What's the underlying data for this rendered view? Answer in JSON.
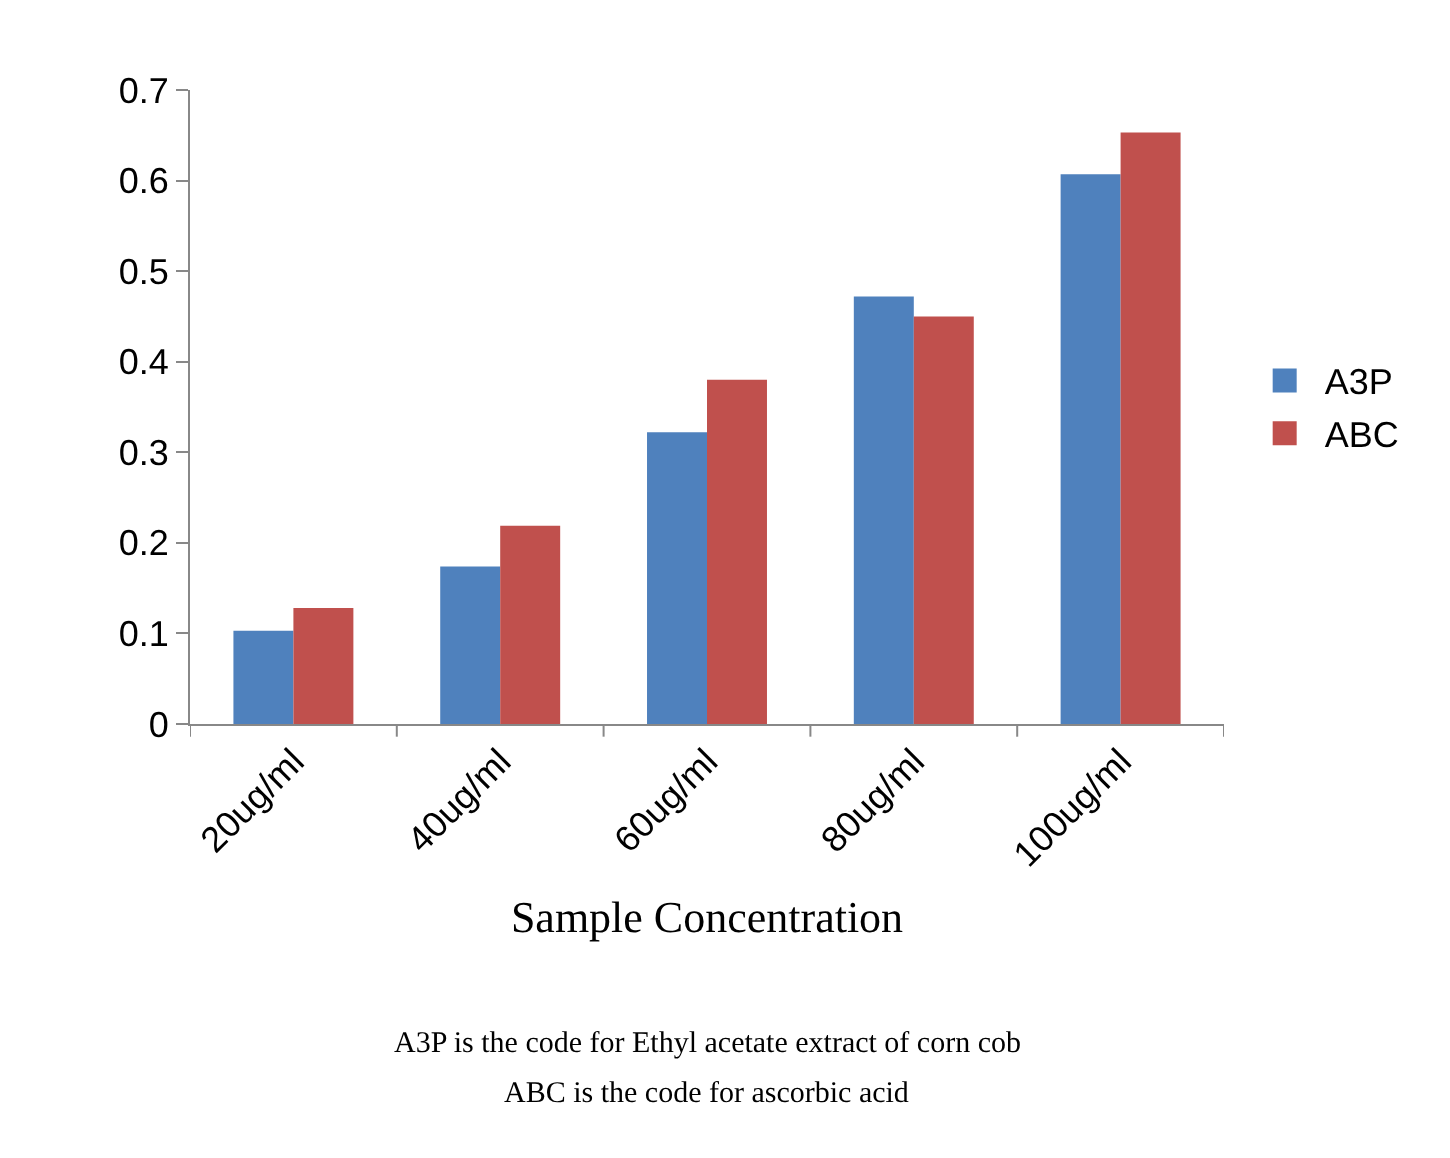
{
  "chart_data": {
    "type": "bar",
    "categories": [
      "20ug/ml",
      "40ug/ml",
      "60ug/ml",
      "80ug/ml",
      "100ug/ml"
    ],
    "series": [
      {
        "name": "A3P",
        "color": "#4f81bd",
        "values": [
          0.103,
          0.174,
          0.322,
          0.472,
          0.607
        ]
      },
      {
        "name": "ABC",
        "color": "#c0504d",
        "values": [
          0.128,
          0.219,
          0.38,
          0.45,
          0.653
        ]
      }
    ],
    "xlabel": "Sample Concentration",
    "annotations": [
      "A3P is the code for Ethyl acetate extract of corn cob",
      "ABC is the code for ascorbic acid"
    ],
    "ylim": [
      0,
      0.7
    ],
    "yticks": [
      0,
      0.1,
      0.2,
      0.3,
      0.4,
      0.5,
      0.6,
      0.7
    ],
    "grid": false,
    "legend": "right"
  }
}
